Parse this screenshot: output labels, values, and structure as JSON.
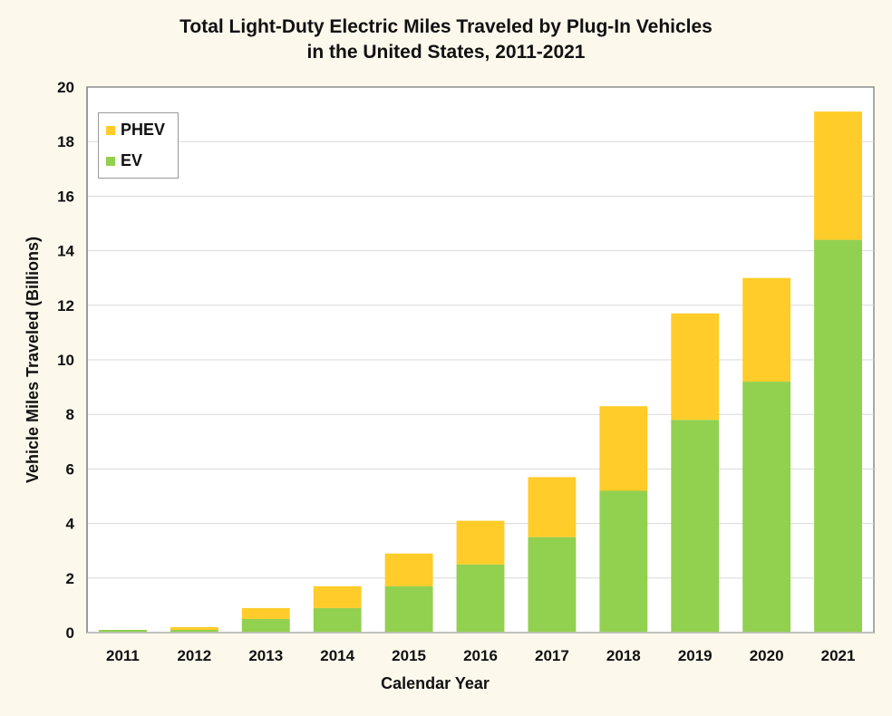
{
  "chart_data": {
    "type": "bar",
    "stacked": true,
    "title": "Total Light-Duty Electric Miles Traveled by Plug-In Vehicles",
    "subtitle": "in the United States, 2011-2021",
    "xlabel": "Calendar Year",
    "ylabel": "Vehicle Miles Traveled (Billions)",
    "ylim": [
      0,
      20
    ],
    "yticks": [
      0,
      2,
      4,
      6,
      8,
      10,
      12,
      14,
      16,
      18,
      20
    ],
    "grid": true,
    "legend_position": "top-left",
    "categories": [
      "2011",
      "2012",
      "2013",
      "2014",
      "2015",
      "2016",
      "2017",
      "2018",
      "2019",
      "2020",
      "2021"
    ],
    "series": [
      {
        "name": "EV",
        "color": "#92d050",
        "values": [
          0.1,
          0.1,
          0.5,
          0.9,
          1.7,
          2.5,
          3.5,
          5.2,
          7.8,
          9.2,
          14.4
        ]
      },
      {
        "name": "PHEV",
        "color": "#ffcc29",
        "values": [
          0.0,
          0.1,
          0.4,
          0.8,
          1.2,
          1.6,
          2.2,
          3.1,
          3.9,
          3.8,
          4.7
        ]
      }
    ]
  },
  "legend": {
    "items": [
      {
        "label": "PHEV",
        "color": "#ffcc29"
      },
      {
        "label": "EV",
        "color": "#92d050"
      }
    ]
  }
}
